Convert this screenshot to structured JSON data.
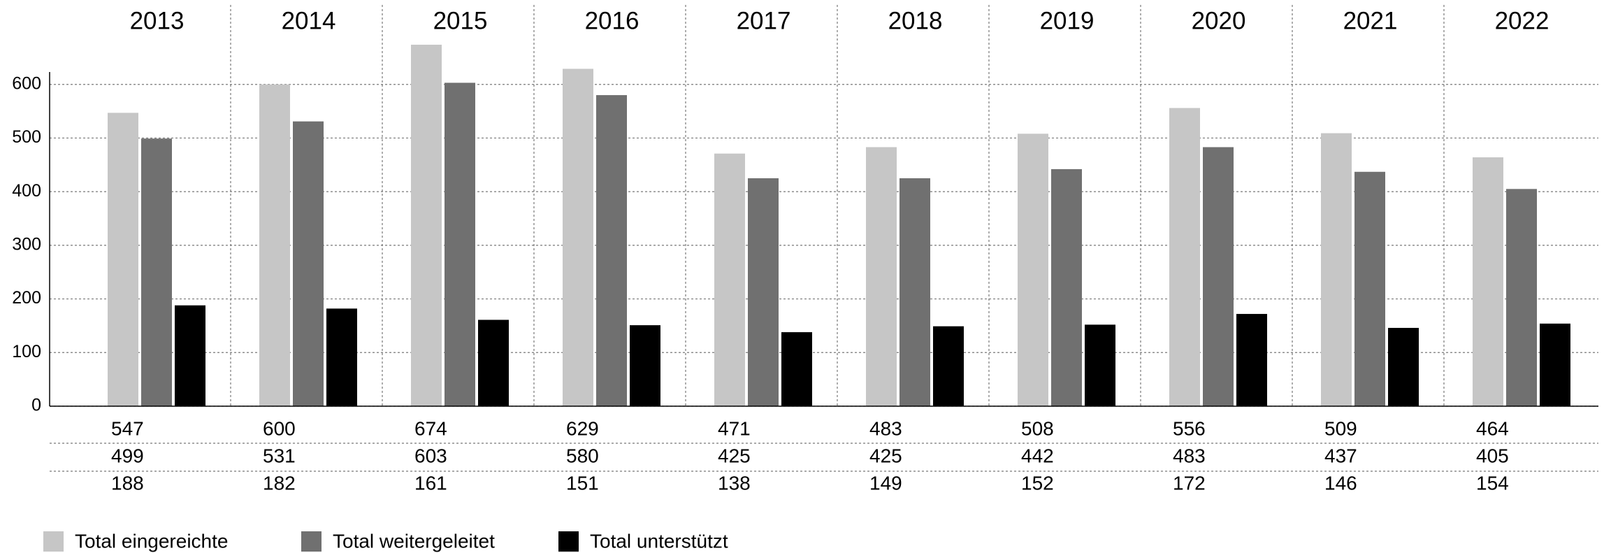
{
  "chart_data": {
    "type": "bar",
    "categories": [
      "2013",
      "2014",
      "2015",
      "2016",
      "2017",
      "2018",
      "2019",
      "2020",
      "2021",
      "2022"
    ],
    "series": [
      {
        "name": "Total eingereichte",
        "color": "#c6c6c6",
        "values": [
          547,
          600,
          674,
          629,
          471,
          483,
          508,
          556,
          509,
          464
        ]
      },
      {
        "name": "Total weitergeleitet",
        "color": "#707070",
        "values": [
          499,
          531,
          603,
          580,
          425,
          425,
          442,
          483,
          437,
          405
        ]
      },
      {
        "name": "Total unterstützt",
        "color": "#000000",
        "values": [
          188,
          182,
          161,
          151,
          138,
          149,
          152,
          172,
          146,
          154
        ]
      }
    ],
    "ylim": [
      0,
      700
    ],
    "yticks": [
      0,
      100,
      200,
      300,
      400,
      500,
      600
    ],
    "grid": true
  }
}
